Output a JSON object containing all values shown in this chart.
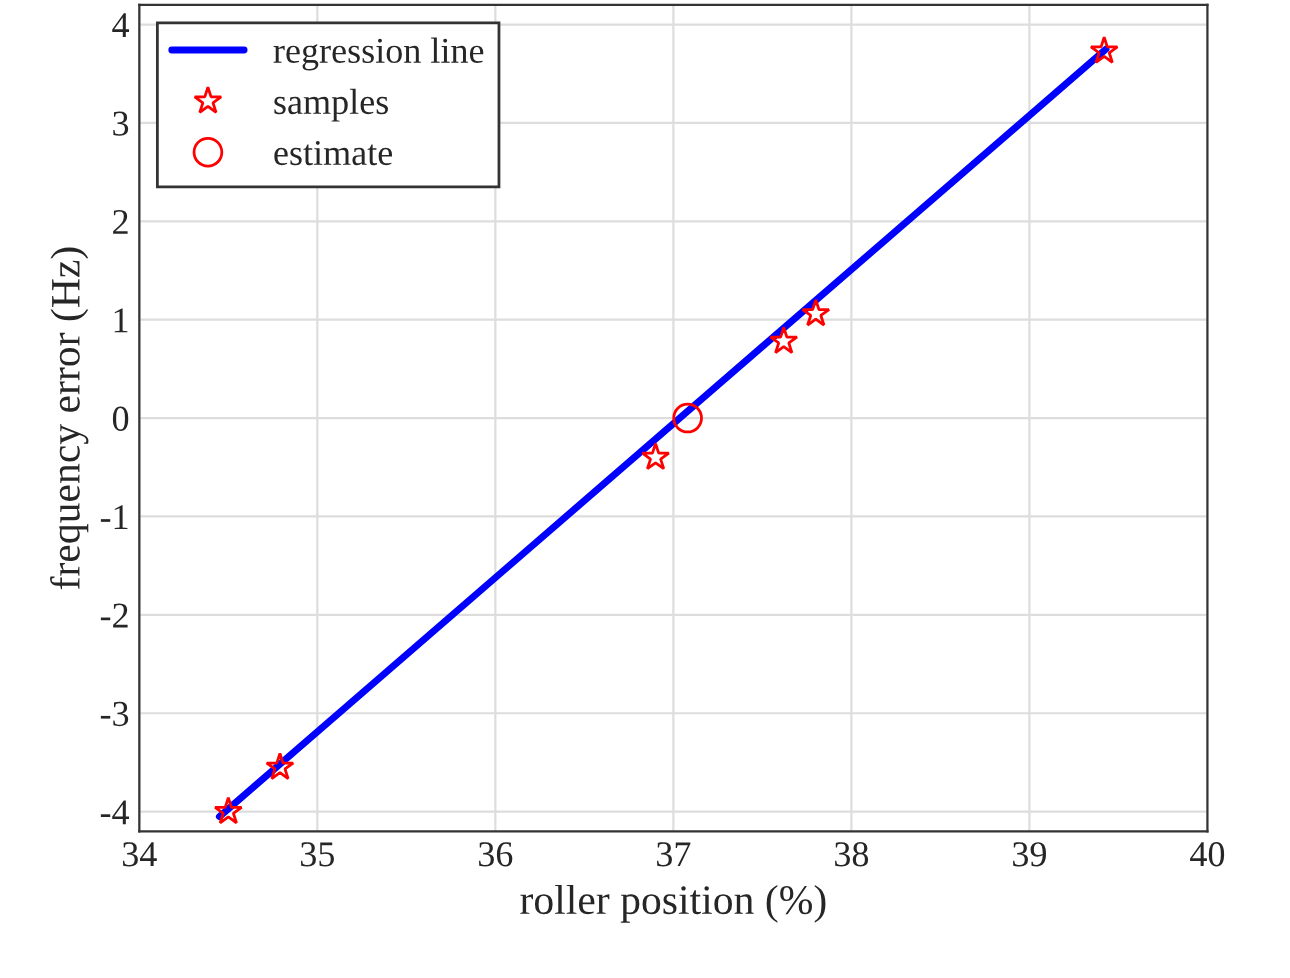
{
  "chart_data": {
    "type": "line",
    "xlabel": "roller position (%)",
    "ylabel": "frequency error (Hz)",
    "xlim": [
      34,
      40
    ],
    "ylim": [
      -4.2,
      4.2
    ],
    "xticks": [
      34,
      35,
      36,
      37,
      38,
      39,
      40
    ],
    "yticks": [
      -4,
      -3,
      -2,
      -1,
      0,
      1,
      2,
      3,
      4
    ],
    "grid": true,
    "legend": "top left",
    "series": [
      {
        "name": "regression line",
        "color": "#0000ff",
        "marker": "none",
        "line_style": "solid",
        "x": [
          34.45,
          39.43
        ],
        "values": [
          -4.05,
          3.75
        ]
      },
      {
        "name": "samples",
        "type": "scatter",
        "color": "#ff0000",
        "marker": "star",
        "x": [
          34.5,
          34.79,
          36.9,
          37.62,
          37.8,
          39.42
        ],
        "values": [
          -4.0,
          -3.55,
          -0.4,
          0.78,
          1.06,
          3.73
        ]
      },
      {
        "name": "estimate",
        "type": "scatter",
        "color": "#ff0000",
        "marker": "circle",
        "x": [
          37.08
        ],
        "values": [
          0.0
        ]
      }
    ]
  }
}
